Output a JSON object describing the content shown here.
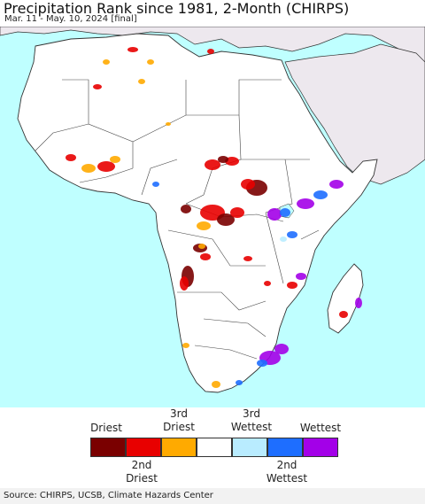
{
  "title": "Precipitation Rank since 1981, 2-Month (CHIRPS)",
  "subtitle": "Mar. 11 - May. 10, 2024 [final]",
  "legend": {
    "top_labels": [
      "Driest",
      "3rd\nDriest",
      "3rd\nWettest",
      "Wettest"
    ],
    "bottom_labels": [
      "2nd\nDriest",
      "2nd\nWettest"
    ],
    "classes": [
      {
        "name": "Driest",
        "color": "#7a0000"
      },
      {
        "name": "2nd Driest",
        "color": "#e80000"
      },
      {
        "name": "3rd Driest",
        "color": "#ffaa00"
      },
      {
        "name": "Normal",
        "color": "#ffffff"
      },
      {
        "name": "3rd Wettest",
        "color": "#b9ecff"
      },
      {
        "name": "2nd Wettest",
        "color": "#1e6eff"
      },
      {
        "name": "Wettest",
        "color": "#a300e8"
      }
    ]
  },
  "source": "Source: CHIRPS, UCSB, Climate Hazards Center",
  "colors": {
    "ocean": "#bfffff",
    "land": "#ffffff",
    "outside_land": "#ede8ee",
    "border": "#333333"
  }
}
